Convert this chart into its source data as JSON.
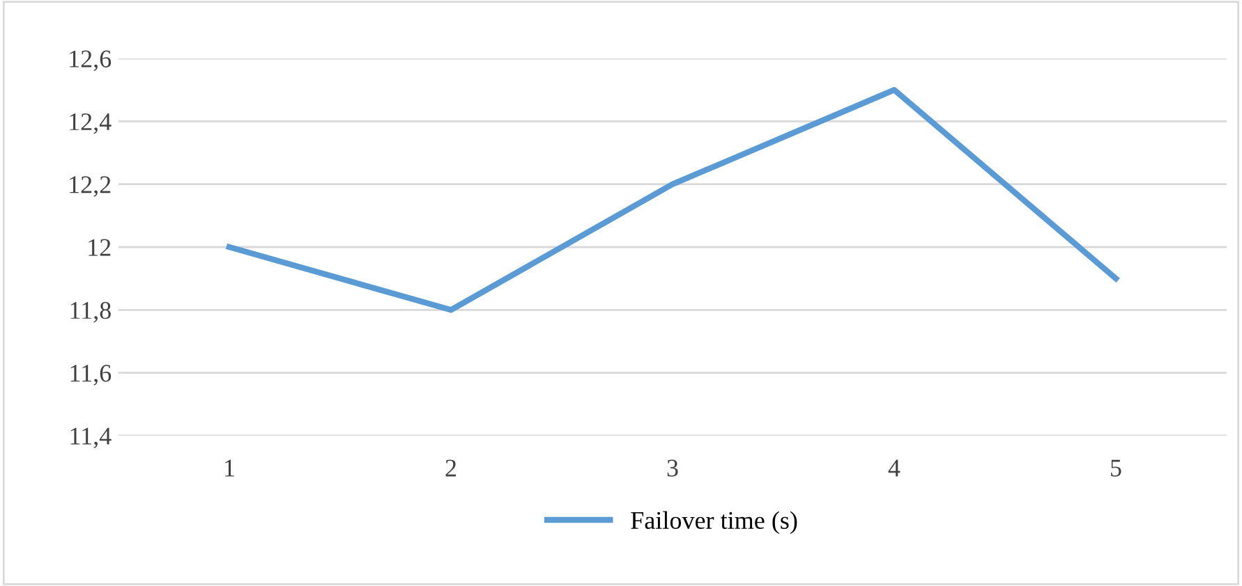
{
  "chart_data": {
    "type": "line",
    "categories": [
      "1",
      "2",
      "3",
      "4",
      "5"
    ],
    "series": [
      {
        "name": "Failover time (s)",
        "color": "#5b9bd5",
        "values": [
          12.0,
          11.8,
          12.2,
          12.5,
          11.9
        ]
      }
    ],
    "ylim": [
      11.4,
      12.6
    ],
    "yticks": [
      {
        "value": 11.4,
        "label": "11,4"
      },
      {
        "value": 11.6,
        "label": "11,6"
      },
      {
        "value": 11.8,
        "label": "11,8"
      },
      {
        "value": 12,
        "label": "12"
      },
      {
        "value": 12.2,
        "label": "12,2"
      },
      {
        "value": 12.4,
        "label": "12,4"
      },
      {
        "value": 12.6,
        "label": "12,6"
      }
    ],
    "grid": "y",
    "legend": "bottom",
    "marker": "none",
    "line_style": "solid"
  }
}
